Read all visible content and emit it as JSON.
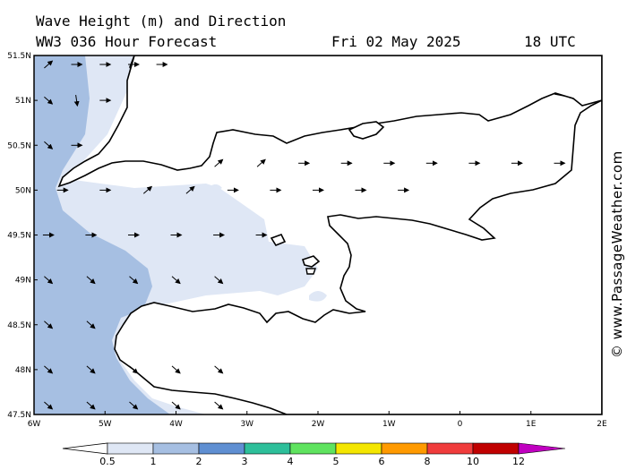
{
  "header": {
    "title": "Wave Height (m) and Direction",
    "model": "WW3 036 Hour Forecast",
    "date": "Fri 02 May 2025",
    "time": "18 UTC"
  },
  "credit": "© www.PassageWeather.com",
  "axes": {
    "lat_labels": [
      "51.5N",
      "51N",
      "50.5N",
      "50N",
      "49.5N",
      "49N",
      "48.5N",
      "48N",
      "47.5N"
    ],
    "lon_labels": [
      "6W",
      "5W",
      "4W",
      "3W",
      "2W",
      "1W",
      "0",
      "1E",
      "2E"
    ]
  },
  "legend": {
    "ticks": [
      "0.5",
      "1",
      "2",
      "3",
      "4",
      "5",
      "6",
      "8",
      "10",
      "12"
    ],
    "colors": [
      "#dfe7f5",
      "#a6bfe2",
      "#5f8fd2",
      "#2dbf9a",
      "#5fe35f",
      "#f4e600",
      "#ff9a00",
      "#f03c3c",
      "#c00000",
      "#c000c0"
    ]
  },
  "chart_data": {
    "type": "heatmap",
    "title": "Wave Height (m) and Direction",
    "units": "m",
    "lon_range": [
      -6,
      2
    ],
    "lat_range": [
      47.5,
      51.5
    ],
    "color_levels": [
      0.5,
      1,
      2,
      3,
      4,
      5,
      6,
      8,
      10,
      12
    ],
    "arrows": [
      {
        "lon": -5.8,
        "lat": 51.4,
        "dir": "NE"
      },
      {
        "lon": -5.4,
        "lat": 51.4,
        "dir": "E"
      },
      {
        "lon": -5.0,
        "lat": 51.4,
        "dir": "E"
      },
      {
        "lon": -4.6,
        "lat": 51.4,
        "dir": "E"
      },
      {
        "lon": -4.2,
        "lat": 51.4,
        "dir": "E"
      },
      {
        "lon": -5.8,
        "lat": 51.0,
        "dir": "SE"
      },
      {
        "lon": -5.4,
        "lat": 51.0,
        "dir": "S"
      },
      {
        "lon": -5.0,
        "lat": 51.0,
        "dir": "E"
      },
      {
        "lon": -5.8,
        "lat": 50.5,
        "dir": "SE"
      },
      {
        "lon": -5.4,
        "lat": 50.5,
        "dir": "E"
      },
      {
        "lon": -3.4,
        "lat": 50.3,
        "dir": "NE"
      },
      {
        "lon": -2.8,
        "lat": 50.3,
        "dir": "NE"
      },
      {
        "lon": -2.2,
        "lat": 50.3,
        "dir": "E"
      },
      {
        "lon": -1.6,
        "lat": 50.3,
        "dir": "E"
      },
      {
        "lon": -1.0,
        "lat": 50.3,
        "dir": "E"
      },
      {
        "lon": -0.4,
        "lat": 50.3,
        "dir": "E"
      },
      {
        "lon": 0.2,
        "lat": 50.3,
        "dir": "E"
      },
      {
        "lon": 0.8,
        "lat": 50.3,
        "dir": "E"
      },
      {
        "lon": 1.4,
        "lat": 50.3,
        "dir": "E"
      },
      {
        "lon": -5.6,
        "lat": 50.0,
        "dir": "E"
      },
      {
        "lon": -5.0,
        "lat": 50.0,
        "dir": "E"
      },
      {
        "lon": -4.4,
        "lat": 50.0,
        "dir": "NE"
      },
      {
        "lon": -3.8,
        "lat": 50.0,
        "dir": "NE"
      },
      {
        "lon": -3.2,
        "lat": 50.0,
        "dir": "E"
      },
      {
        "lon": -2.6,
        "lat": 50.0,
        "dir": "E"
      },
      {
        "lon": -2.0,
        "lat": 50.0,
        "dir": "E"
      },
      {
        "lon": -1.4,
        "lat": 50.0,
        "dir": "E"
      },
      {
        "lon": -0.8,
        "lat": 50.0,
        "dir": "E"
      },
      {
        "lon": -5.8,
        "lat": 49.5,
        "dir": "E"
      },
      {
        "lon": -5.2,
        "lat": 49.5,
        "dir": "E"
      },
      {
        "lon": -4.6,
        "lat": 49.5,
        "dir": "E"
      },
      {
        "lon": -4.0,
        "lat": 49.5,
        "dir": "E"
      },
      {
        "lon": -3.4,
        "lat": 49.5,
        "dir": "E"
      },
      {
        "lon": -2.8,
        "lat": 49.5,
        "dir": "E"
      },
      {
        "lon": -5.8,
        "lat": 49.0,
        "dir": "SE"
      },
      {
        "lon": -5.2,
        "lat": 49.0,
        "dir": "SE"
      },
      {
        "lon": -4.6,
        "lat": 49.0,
        "dir": "SE"
      },
      {
        "lon": -4.0,
        "lat": 49.0,
        "dir": "SE"
      },
      {
        "lon": -3.4,
        "lat": 49.0,
        "dir": "SE"
      },
      {
        "lon": -5.8,
        "lat": 48.5,
        "dir": "SE"
      },
      {
        "lon": -5.2,
        "lat": 48.5,
        "dir": "SE"
      },
      {
        "lon": -5.8,
        "lat": 48.0,
        "dir": "SE"
      },
      {
        "lon": -5.2,
        "lat": 48.0,
        "dir": "SE"
      },
      {
        "lon": -4.6,
        "lat": 48.0,
        "dir": "SE"
      },
      {
        "lon": -4.0,
        "lat": 48.0,
        "dir": "SE"
      },
      {
        "lon": -3.4,
        "lat": 48.0,
        "dir": "SE"
      },
      {
        "lon": -5.8,
        "lat": 47.6,
        "dir": "SE"
      },
      {
        "lon": -5.2,
        "lat": 47.6,
        "dir": "SE"
      },
      {
        "lon": -4.6,
        "lat": 47.6,
        "dir": "SE"
      },
      {
        "lon": -4.0,
        "lat": 47.6,
        "dir": "SE"
      },
      {
        "lon": -3.4,
        "lat": 47.6,
        "dir": "SE"
      }
    ]
  }
}
